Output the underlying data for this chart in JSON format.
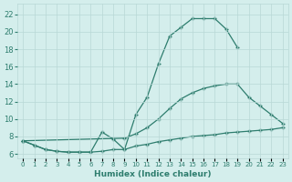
{
  "l1x": [
    0,
    1,
    2,
    3,
    4,
    5,
    6,
    7,
    8,
    9,
    10,
    11,
    12,
    13,
    14,
    15,
    16,
    17,
    18,
    19
  ],
  "l1y": [
    7.5,
    7.0,
    6.5,
    6.3,
    6.2,
    6.2,
    6.2,
    8.5,
    7.7,
    6.5,
    10.5,
    12.5,
    16.3,
    19.5,
    20.5,
    21.5,
    21.5,
    21.5,
    20.3,
    18.2
  ],
  "l2x": [
    0,
    9,
    10,
    11,
    12,
    13,
    14,
    15,
    16,
    17,
    18,
    19,
    20,
    21,
    22,
    23
  ],
  "l2y": [
    7.5,
    7.8,
    8.3,
    9.0,
    10.0,
    11.2,
    12.3,
    13.0,
    13.5,
    13.8,
    14.0,
    14.0,
    12.5,
    11.5,
    10.5,
    9.5
  ],
  "l3x": [
    0,
    1,
    2,
    3,
    4,
    5,
    6,
    7,
    8,
    9,
    10,
    11,
    12,
    13,
    14,
    15,
    16,
    17,
    18,
    19,
    20,
    21,
    22,
    23
  ],
  "l3y": [
    7.5,
    7.0,
    6.5,
    6.3,
    6.2,
    6.2,
    6.2,
    6.3,
    6.5,
    6.5,
    6.9,
    7.1,
    7.4,
    7.6,
    7.8,
    8.0,
    8.1,
    8.2,
    8.4,
    8.5,
    8.6,
    8.7,
    8.8,
    9.0
  ],
  "line_color": "#2e7d6e",
  "bg_color": "#d4eeec",
  "grid_color": "#b8d8d6",
  "xlabel": "Humidex (Indice chaleur)",
  "yticks": [
    6,
    8,
    10,
    12,
    14,
    16,
    18,
    20,
    22
  ],
  "xtick_labels": [
    "0",
    "1",
    "2",
    "3",
    "4",
    "5",
    "6",
    "7",
    "8",
    "9",
    "10",
    "11",
    "12",
    "13",
    "14",
    "15",
    "16",
    "17",
    "18",
    "19",
    "20",
    "21",
    "22",
    "23"
  ],
  "ylim": [
    5.5,
    23.2
  ],
  "xlim": [
    -0.5,
    23.5
  ]
}
